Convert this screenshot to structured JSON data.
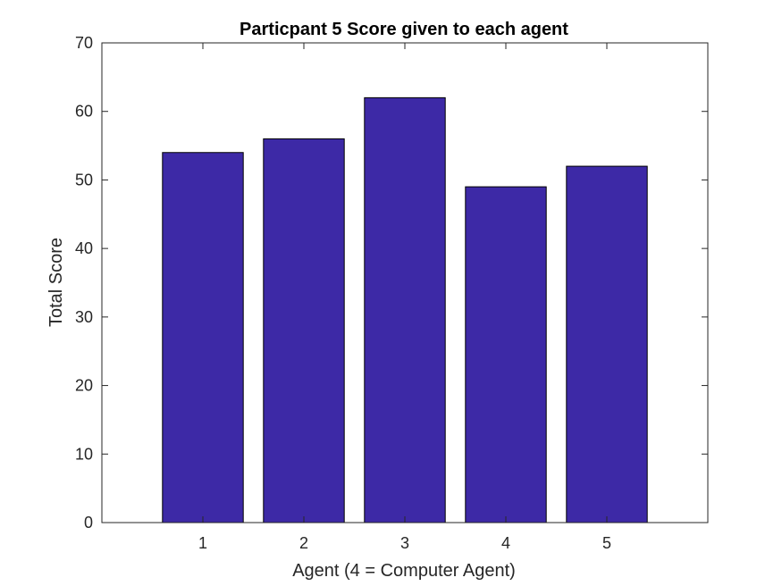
{
  "chart_data": {
    "type": "bar",
    "title": "Particpant 5 Score given to each agent",
    "xlabel": "Agent (4 = Computer Agent)",
    "ylabel": "Total Score",
    "categories": [
      "1",
      "2",
      "3",
      "4",
      "5"
    ],
    "values": [
      54,
      56,
      62,
      49,
      52
    ],
    "ylim": [
      0,
      70
    ],
    "yticks": [
      0,
      10,
      20,
      30,
      40,
      50,
      60,
      70
    ],
    "xlim": [
      0,
      6
    ],
    "grid": false,
    "bar_color": "#3d29a6",
    "bar_edge_color": "#000000",
    "axis_color": "#262626"
  }
}
